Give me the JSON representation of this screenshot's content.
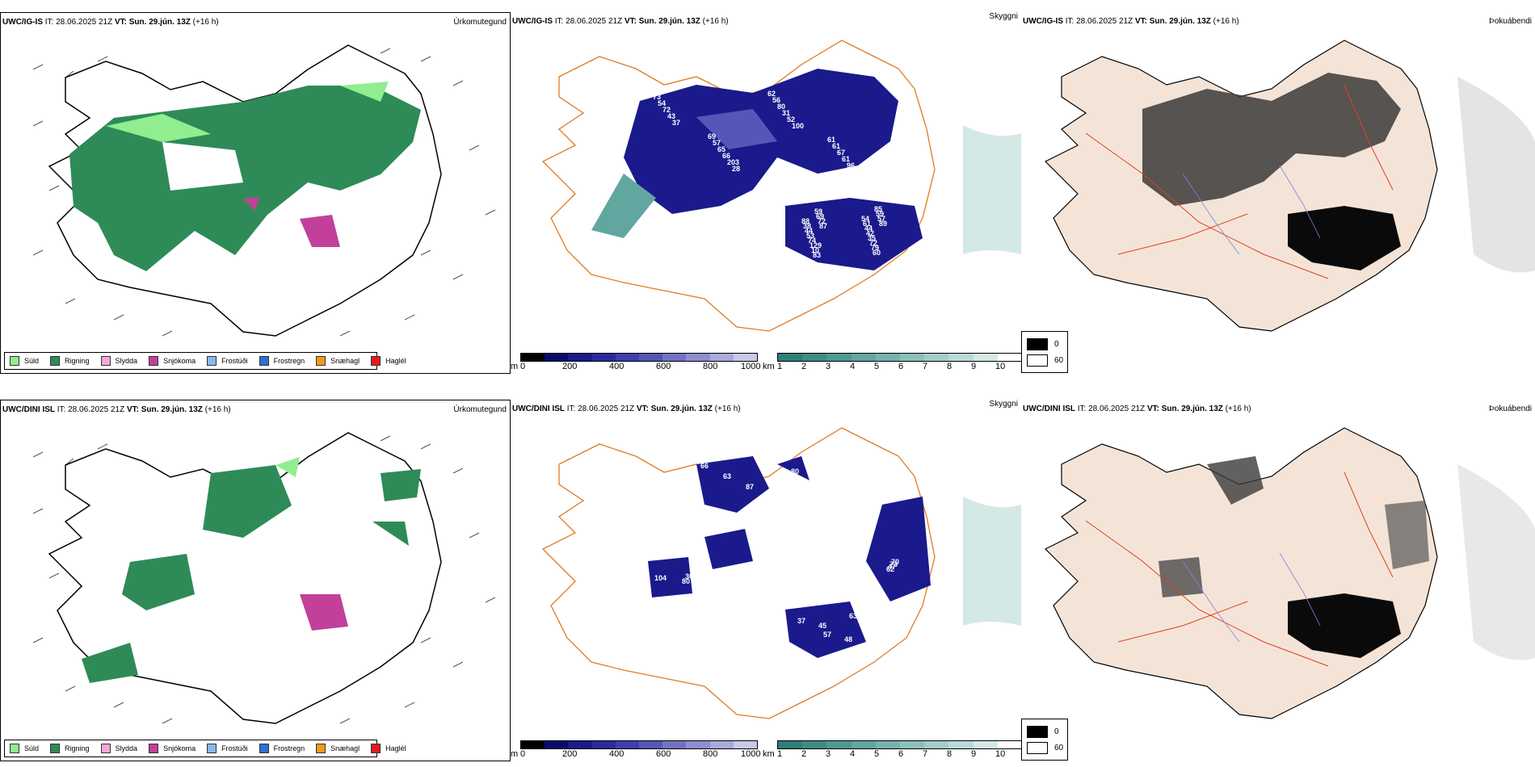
{
  "rows": [
    {
      "model": "UWC/IG-IS",
      "it_label": "IT:",
      "it_value": "28.06.2025 21Z",
      "vt_label": "VT:",
      "vt_value": "Sun. 29.jún. 13Z",
      "lead": "(+16 h)"
    },
    {
      "model": "UWC/DINI ISL",
      "it_label": "IT:",
      "it_value": "28.06.2025 21Z",
      "vt_label": "VT:",
      "vt_value": "Sun. 29.jún. 13Z",
      "lead": "(+16 h)"
    }
  ],
  "panel_titles": {
    "precip": "Úrkomutegund",
    "cloud": "Skyggni",
    "fog": "Þokuábendi"
  },
  "precip_legend": [
    {
      "label": "Súld",
      "color": "#90ee90"
    },
    {
      "label": "Rigning",
      "color": "#2e8b57"
    },
    {
      "label": "Slydda",
      "color": "#f4a6d7"
    },
    {
      "label": "Snjókoma",
      "color": "#c2409a"
    },
    {
      "label": "Frostúði",
      "color": "#87b8f0"
    },
    {
      "label": "Frostregn",
      "color": "#2f6fd6"
    },
    {
      "label": "Snæhagl",
      "color": "#f29a1e"
    },
    {
      "label": "Haglél",
      "color": "#e31b1b"
    }
  ],
  "height_scale": {
    "unit": "m",
    "ticks": [
      "0",
      "200",
      "400",
      "600",
      "800",
      "1000"
    ],
    "colors": [
      "#000000",
      "#0a0a6e",
      "#1a1a8c",
      "#2a2aa0",
      "#3e3eae",
      "#5656b8",
      "#7272c4",
      "#8e8ed0",
      "#aaaadc",
      "#c8c8ea"
    ]
  },
  "visibility_scale": {
    "unit": "km",
    "ticks": [
      "1",
      "2",
      "3",
      "4",
      "5",
      "6",
      "7",
      "8",
      "9",
      "10"
    ],
    "colors": [
      "#2f7f7a",
      "#3e8c86",
      "#4f9993",
      "#62a6a0",
      "#76b3ad",
      "#8cc0bb",
      "#a3cdc9",
      "#bbdad7",
      "#d4e8e6",
      "#ffffff"
    ]
  },
  "fog_scale": {
    "high_label": "0",
    "low_label": "60",
    "high_color": "#000000",
    "low_color": "#ffffff"
  },
  "row1_cloud_labels": [
    "65",
    "87",
    "69",
    "89",
    "62",
    "72",
    "61",
    "57",
    "73",
    "69",
    "57",
    "59",
    "56",
    "59",
    "61",
    "85",
    "54",
    "83",
    "65",
    "60",
    "80",
    "10",
    "67",
    "79",
    "72",
    "129",
    "66",
    "72",
    "31",
    "74",
    "61",
    "35",
    "43",
    "53",
    "203",
    "42",
    "52",
    "44",
    "96",
    "44",
    "37",
    "38",
    "28",
    "61",
    "100",
    "88",
    "46",
    "54"
  ],
  "row2_cloud_labels": [
    "66",
    "80",
    "63",
    "70",
    "63",
    "55",
    "57",
    "73",
    "87",
    "104",
    "37",
    "47",
    "42",
    "30",
    "48",
    "62",
    "80",
    "58",
    "45"
  ]
}
